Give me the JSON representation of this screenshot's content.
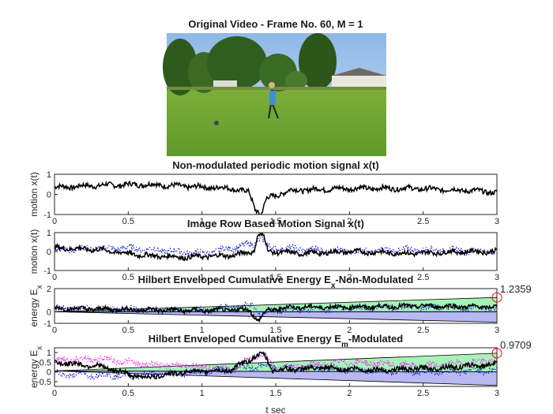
{
  "figure": {
    "image_title": "Original Video - Frame No. 60, M = 1",
    "x_unit_label": "t sec"
  },
  "chart_data": [
    {
      "type": "line",
      "title": "Non-modulated periodic motion signal x(t)",
      "ylabel": "motion x(t)",
      "xlim": [
        0,
        3
      ],
      "ylim": [
        -1,
        1
      ],
      "x_ticks": [
        "0",
        "0.5",
        "1",
        "1.5",
        "2",
        "2.5",
        "3"
      ],
      "y_ticks": [
        "1",
        "0",
        "-1"
      ],
      "series": [
        {
          "color": "#000000",
          "kind": "noisy",
          "x": [
            0,
            0.3,
            0.6,
            0.9,
            1.2,
            1.32,
            1.36,
            1.4,
            1.44,
            1.6,
            2.0,
            2.4,
            2.8,
            3.0
          ],
          "y": [
            0.35,
            0.45,
            0.5,
            0.4,
            0.3,
            0.1,
            -0.7,
            -1.0,
            -0.2,
            0.2,
            0.3,
            0.3,
            0.2,
            0.1
          ]
        }
      ]
    },
    {
      "type": "line",
      "title": "Image Row Based Motion Signal x(t)",
      "ylabel": "motion x(t)",
      "xlim": [
        0,
        3
      ],
      "ylim": [
        -1,
        1
      ],
      "x_ticks": [
        "0",
        "0.5",
        "1",
        "1.5",
        "2",
        "2.5",
        "3"
      ],
      "y_ticks": [
        "1",
        "0",
        "-1"
      ],
      "series": [
        {
          "color": "#0000cc",
          "kind": "dotted",
          "x": [
            0,
            0.5,
            1.0,
            1.35,
            1.4,
            1.45,
            2.0,
            2.5,
            3.0
          ],
          "y": [
            0.1,
            0.2,
            -0.1,
            0.4,
            0.8,
            0.2,
            0.0,
            0.1,
            0.0
          ]
        },
        {
          "color": "#000000",
          "kind": "noisy",
          "x": [
            0,
            0.3,
            0.6,
            0.9,
            1.2,
            1.35,
            1.38,
            1.42,
            1.45,
            1.7,
            2.0,
            2.4,
            2.8,
            3.0
          ],
          "y": [
            0.2,
            0.1,
            -0.2,
            -0.3,
            -0.2,
            0.0,
            0.9,
            0.8,
            0.0,
            -0.1,
            0.0,
            -0.1,
            0.0,
            0.0
          ]
        }
      ]
    },
    {
      "type": "area",
      "title": "Hilbert Enveloped Cumulative Energy E",
      "title_sub": "x",
      "title_tail": "-Non-Modulated",
      "ylabel": "energy E",
      "ylabel_sub": "x",
      "xlim": [
        0,
        3
      ],
      "ylim": [
        -1,
        2
      ],
      "x_ticks": [
        "0",
        "0.5",
        "1",
        "1.5",
        "2",
        "2.5",
        "3"
      ],
      "y_ticks": [
        "2",
        "0",
        "-1"
      ],
      "fills": [
        {
          "color": "#00dd33",
          "x": [
            0,
            3
          ],
          "upper": [
            0.0,
            1.2359
          ],
          "lower": [
            0.0,
            0.0
          ]
        },
        {
          "color": "#3333dd",
          "x": [
            0,
            3
          ],
          "upper": [
            0.0,
            0.0
          ],
          "lower": [
            0.0,
            -0.9
          ]
        }
      ],
      "series": [
        {
          "color": "#0000cc",
          "kind": "dotted",
          "x": [
            0,
            0.5,
            1.0,
            1.35,
            1.4,
            1.45,
            2.0,
            2.5,
            3.0
          ],
          "y": [
            0.3,
            0.2,
            0.1,
            0.6,
            -0.5,
            0.1,
            0.3,
            0.4,
            0.3
          ]
        },
        {
          "color": "#000000",
          "kind": "noisy",
          "x": [
            0,
            0.5,
            1.0,
            1.32,
            1.38,
            1.44,
            1.6,
            2.0,
            2.5,
            3.0
          ],
          "y": [
            0.3,
            0.2,
            0.1,
            0.2,
            -0.8,
            0.1,
            0.4,
            0.4,
            0.5,
            0.4
          ]
        }
      ],
      "marker": {
        "x": 3,
        "y": 1.2359,
        "color": "#ff0000"
      },
      "annotation": "1.2359"
    },
    {
      "type": "area",
      "title": "Hilbert Enveloped Cumulative Energy E",
      "title_sub": "m",
      "title_tail": "-Modulated",
      "ylabel": "energy E",
      "ylabel_sub": "x",
      "xlim": [
        0,
        3
      ],
      "ylim": [
        -0.75,
        1.25
      ],
      "x_ticks": [
        "0",
        "0.5",
        "1",
        "1.5",
        "2",
        "2.5",
        "3"
      ],
      "y_ticks": [
        "1",
        "0.5",
        "0",
        "-0.5"
      ],
      "fills": [
        {
          "color": "#00dd33",
          "x": [
            0,
            3
          ],
          "upper": [
            0.05,
            0.9709
          ],
          "lower": [
            0.05,
            0.0
          ]
        },
        {
          "color": "#3333dd",
          "x": [
            0,
            3
          ],
          "upper": [
            0.05,
            0.0
          ],
          "lower": [
            0.05,
            -0.7
          ]
        }
      ],
      "series": [
        {
          "color": "#ff00ff",
          "kind": "dotted",
          "x": [
            0,
            0.3,
            0.6,
            0.9,
            1.2,
            1.38,
            1.42,
            1.5,
            2.0,
            2.5,
            3.0
          ],
          "y": [
            0.6,
            0.7,
            0.4,
            0.3,
            0.1,
            0.9,
            0.9,
            0.2,
            0.5,
            0.3,
            0.6
          ]
        },
        {
          "color": "#0000cc",
          "kind": "dotted",
          "x": [
            0,
            0.5,
            1.0,
            1.4,
            2.0,
            2.5,
            3.0
          ],
          "y": [
            -0.1,
            -0.2,
            0.0,
            0.3,
            0.1,
            0.0,
            0.1
          ]
        },
        {
          "color": "#000000",
          "kind": "noisy",
          "x": [
            0,
            0.3,
            0.6,
            0.9,
            1.2,
            1.36,
            1.42,
            1.48,
            1.8,
            2.2,
            2.6,
            3.0
          ],
          "y": [
            0.5,
            0.3,
            -0.3,
            0.0,
            0.1,
            0.8,
            0.9,
            0.1,
            0.2,
            0.1,
            0.2,
            0.4
          ]
        }
      ],
      "marker": {
        "x": 3,
        "y": 0.9709,
        "color": "#ff0000"
      },
      "annotation": "0.9709"
    }
  ]
}
